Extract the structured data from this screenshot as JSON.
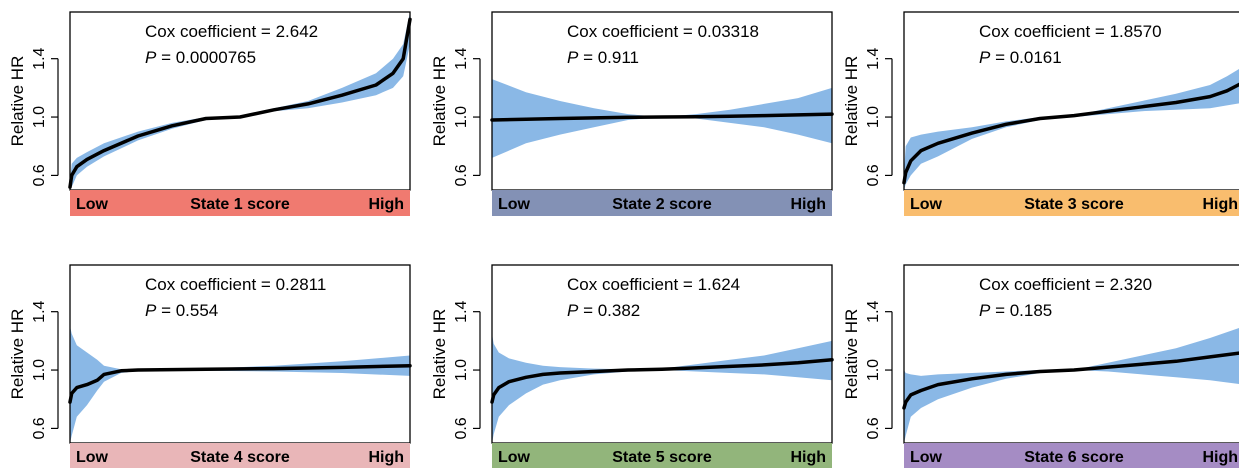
{
  "chart_data": [
    {
      "type": "line",
      "panel": "State 1",
      "ylabel": "Relative HR",
      "yticks": [
        "0.6",
        "1.0",
        "1.4"
      ],
      "ylim": [
        0.5,
        1.72
      ],
      "annotation": {
        "coef_label": "Cox coefficient = 2.642",
        "p_prefix": "P",
        "p_value": " = 0.0000765"
      },
      "bar": {
        "low": "Low",
        "title": "State 1 score",
        "high": "High",
        "color": "#f07a70"
      },
      "band_color": "#8ab8e6",
      "series": [
        {
          "x": [
            0,
            0.005,
            0.02,
            0.05,
            0.1,
            0.2,
            0.3,
            0.4,
            0.5,
            0.6,
            0.7,
            0.8,
            0.9,
            0.95,
            0.98,
            1.0
          ],
          "values": [
            0.52,
            0.6,
            0.66,
            0.71,
            0.77,
            0.87,
            0.94,
            0.99,
            1.0,
            1.05,
            1.09,
            1.15,
            1.22,
            1.3,
            1.4,
            1.67
          ],
          "lower": [
            0.5,
            0.52,
            0.6,
            0.66,
            0.73,
            0.84,
            0.92,
            0.98,
            1.0,
            1.04,
            1.06,
            1.1,
            1.15,
            1.2,
            1.28,
            1.5
          ],
          "upper": [
            0.56,
            0.68,
            0.72,
            0.76,
            0.82,
            0.9,
            0.96,
            1.0,
            1.0,
            1.06,
            1.11,
            1.2,
            1.3,
            1.4,
            1.5,
            1.72
          ]
        }
      ]
    },
    {
      "type": "line",
      "panel": "State 2",
      "ylabel": "Relative HR",
      "yticks": [
        "0.6",
        "1.0",
        "1.4"
      ],
      "ylim": [
        0.5,
        1.72
      ],
      "annotation": {
        "coef_label": "Cox coefficient = 0.03318",
        "p_prefix": "P",
        "p_value": " = 0.911"
      },
      "bar": {
        "low": "Low",
        "title": "State 2 score",
        "high": "High",
        "color": "#8391b5"
      },
      "band_color": "#8ab8e6",
      "series": [
        {
          "x": [
            0,
            0.1,
            0.2,
            0.3,
            0.4,
            0.5,
            0.6,
            0.7,
            0.8,
            0.9,
            1.0
          ],
          "values": [
            0.98,
            0.985,
            0.99,
            0.994,
            0.998,
            1.0,
            1.002,
            1.006,
            1.01,
            1.015,
            1.02
          ],
          "lower": [
            0.72,
            0.82,
            0.88,
            0.93,
            0.98,
            1.0,
            0.99,
            0.96,
            0.93,
            0.88,
            0.82
          ],
          "upper": [
            1.26,
            1.17,
            1.11,
            1.06,
            1.02,
            1.0,
            1.02,
            1.05,
            1.09,
            1.13,
            1.2
          ]
        }
      ]
    },
    {
      "type": "line",
      "panel": "State 3",
      "ylabel": "Relative HR",
      "yticks": [
        "0.6",
        "1.0",
        "1.4"
      ],
      "ylim": [
        0.5,
        1.72
      ],
      "annotation": {
        "coef_label": "Cox coefficient = 1.8570",
        "p_prefix": "P",
        "p_value": " = 0.0161"
      },
      "bar": {
        "low": "Low",
        "title": "State 3 score",
        "high": "High",
        "color": "#f9bd6e"
      },
      "band_color": "#8ab8e6",
      "series": [
        {
          "x": [
            0,
            0.005,
            0.02,
            0.05,
            0.1,
            0.2,
            0.3,
            0.4,
            0.5,
            0.6,
            0.7,
            0.8,
            0.9,
            0.95,
            1.0
          ],
          "values": [
            0.55,
            0.62,
            0.7,
            0.77,
            0.82,
            0.89,
            0.95,
            0.99,
            1.01,
            1.04,
            1.07,
            1.1,
            1.14,
            1.18,
            1.24
          ],
          "lower": [
            0.5,
            0.54,
            0.6,
            0.68,
            0.73,
            0.85,
            0.93,
            0.98,
            1.0,
            1.02,
            1.04,
            1.05,
            1.06,
            1.08,
            1.1
          ],
          "upper": [
            0.62,
            0.8,
            0.86,
            0.88,
            0.9,
            0.93,
            0.97,
            1.0,
            1.01,
            1.06,
            1.11,
            1.16,
            1.22,
            1.28,
            1.35
          ]
        }
      ]
    },
    {
      "type": "line",
      "panel": "State 4",
      "ylabel": "Relative HR",
      "yticks": [
        "0.6",
        "1.0",
        "1.4"
      ],
      "ylim": [
        0.5,
        1.72
      ],
      "annotation": {
        "coef_label": "Cox coefficient = 0.2811",
        "p_prefix": "P",
        "p_value": " = 0.554"
      },
      "bar": {
        "low": "Low",
        "title": "State 4 score",
        "high": "High",
        "color": "#e9b6b8"
      },
      "band_color": "#8ab8e6",
      "series": [
        {
          "x": [
            0,
            0.005,
            0.02,
            0.05,
            0.08,
            0.1,
            0.15,
            0.2,
            0.4,
            0.6,
            0.8,
            1.0
          ],
          "values": [
            0.78,
            0.84,
            0.88,
            0.9,
            0.93,
            0.97,
            0.995,
            1.0,
            1.005,
            1.01,
            1.018,
            1.03
          ],
          "lower": [
            0.5,
            0.55,
            0.68,
            0.76,
            0.86,
            0.92,
            0.98,
            0.995,
            0.995,
            0.99,
            0.98,
            0.96
          ],
          "upper": [
            1.3,
            1.25,
            1.17,
            1.12,
            1.07,
            1.03,
            1.005,
            1.002,
            1.01,
            1.03,
            1.06,
            1.1
          ]
        }
      ]
    },
    {
      "type": "line",
      "panel": "State 5",
      "ylabel": "Relative HR",
      "yticks": [
        "0.6",
        "1.0",
        "1.4"
      ],
      "ylim": [
        0.5,
        1.72
      ],
      "annotation": {
        "coef_label": "Cox coefficient = 1.624",
        "p_prefix": "P",
        "p_value": " = 0.382"
      },
      "bar": {
        "low": "Low",
        "title": "State 5 score",
        "high": "High",
        "color": "#92b57b"
      },
      "band_color": "#8ab8e6",
      "series": [
        {
          "x": [
            0,
            0.005,
            0.02,
            0.05,
            0.1,
            0.15,
            0.2,
            0.3,
            0.4,
            0.5,
            0.6,
            0.7,
            0.8,
            0.9,
            1.0
          ],
          "values": [
            0.78,
            0.83,
            0.88,
            0.92,
            0.95,
            0.97,
            0.98,
            0.99,
            1.0,
            1.005,
            1.015,
            1.025,
            1.035,
            1.05,
            1.07
          ],
          "lower": [
            0.5,
            0.56,
            0.68,
            0.76,
            0.84,
            0.9,
            0.93,
            0.97,
            0.99,
            1.0,
            0.99,
            0.98,
            0.97,
            0.95,
            0.93
          ],
          "upper": [
            1.25,
            1.18,
            1.12,
            1.08,
            1.05,
            1.03,
            1.02,
            1.01,
            1.005,
            1.01,
            1.04,
            1.07,
            1.1,
            1.15,
            1.2
          ]
        }
      ]
    },
    {
      "type": "line",
      "panel": "State 6",
      "ylabel": "Relative HR",
      "yticks": [
        "0.6",
        "1.0",
        "1.4"
      ],
      "ylim": [
        0.5,
        1.72
      ],
      "annotation": {
        "coef_label": "Cox coefficient = 2.320",
        "p_prefix": "P",
        "p_value": " = 0.185"
      },
      "bar": {
        "low": "Low",
        "title": "State 6 score",
        "high": "High",
        "color": "#a58cc4"
      },
      "band_color": "#8ab8e6",
      "series": [
        {
          "x": [
            0,
            0.005,
            0.02,
            0.05,
            0.1,
            0.2,
            0.3,
            0.4,
            0.5,
            0.6,
            0.7,
            0.8,
            0.9,
            1.0
          ],
          "values": [
            0.74,
            0.78,
            0.83,
            0.86,
            0.9,
            0.94,
            0.97,
            0.99,
            1.0,
            1.02,
            1.04,
            1.06,
            1.09,
            1.12
          ],
          "lower": [
            0.5,
            0.55,
            0.68,
            0.74,
            0.8,
            0.88,
            0.94,
            0.98,
            1.0,
            0.99,
            0.97,
            0.95,
            0.93,
            0.9
          ],
          "upper": [
            1.0,
            0.98,
            0.97,
            0.96,
            0.97,
            0.98,
            0.99,
            1.0,
            1.0,
            1.05,
            1.1,
            1.15,
            1.22,
            1.3
          ]
        }
      ]
    }
  ]
}
